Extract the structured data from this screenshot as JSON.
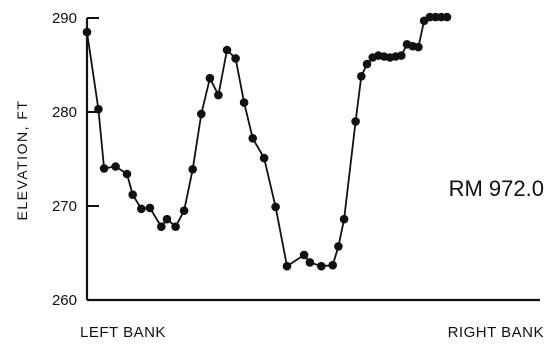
{
  "chart_data": {
    "type": "line",
    "ylabel": "ELEVATION, FT",
    "ylim": [
      260,
      290
    ],
    "yticks": [
      260,
      270,
      280,
      290
    ],
    "x_start_label": "LEFT BANK",
    "x_end_label": "RIGHT BANK",
    "annotation": "RM 972.0",
    "grid": false,
    "series": [
      {
        "x": [
          0,
          2,
          3,
          5,
          7,
          8,
          9.5,
          11,
          13,
          14,
          15.5,
          17,
          18.5,
          20,
          21.5,
          23,
          24.5,
          26,
          27.5,
          29,
          31,
          33,
          35,
          38,
          39,
          41,
          43,
          44,
          45,
          47,
          48,
          49,
          50,
          51,
          52,
          53,
          54,
          55,
          56,
          57,
          58,
          59,
          60,
          61,
          62,
          63
        ],
        "y": [
          288.5,
          280.3,
          274.0,
          274.2,
          273.4,
          271.2,
          269.7,
          269.8,
          267.8,
          268.6,
          267.8,
          269.5,
          273.9,
          279.8,
          283.6,
          281.8,
          286.6,
          285.7,
          281.0,
          277.2,
          275.1,
          269.9,
          263.6,
          264.8,
          264.0,
          263.6,
          263.7,
          265.7,
          268.6,
          279.0,
          283.8,
          285.1,
          285.8,
          286.0,
          285.9,
          285.8,
          285.9,
          286.0,
          287.2,
          287.0,
          286.9,
          289.7,
          290.1,
          290.1,
          290.1,
          290.1
        ]
      }
    ]
  }
}
